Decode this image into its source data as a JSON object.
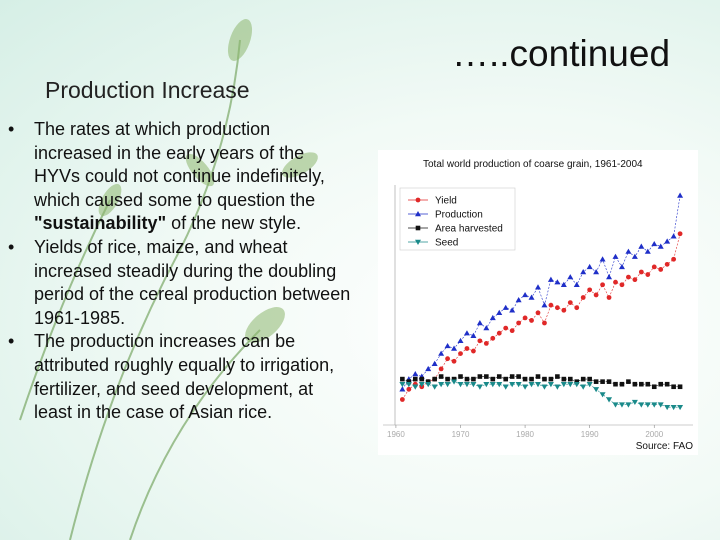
{
  "slide": {
    "heading": "Production Increase",
    "continued": "…..continued",
    "bullets": [
      {
        "before": "The rates at which production increased in the early years of the HYVs could not continue indefinitely, which caused some to question the ",
        "bold": "\"sustainability\"",
        "after": " of the new style."
      },
      {
        "before": "Yields of rice, maize, and wheat increased steadily during the doubling period of the cereal production between 1961-1985.",
        "bold": "",
        "after": ""
      },
      {
        "before": "The production increases can be attributed roughly equally to irrigation, fertilizer, and seed development, at least in the case of Asian rice.",
        "bold": "",
        "after": ""
      }
    ]
  },
  "chart_data": {
    "type": "line",
    "title": "Total world production of coarse grain, 1961-2004",
    "source": "Source:  FAO",
    "x": [
      1961,
      1962,
      1963,
      1964,
      1965,
      1966,
      1967,
      1968,
      1969,
      1970,
      1971,
      1972,
      1973,
      1974,
      1975,
      1976,
      1977,
      1978,
      1979,
      1980,
      1981,
      1982,
      1983,
      1984,
      1985,
      1986,
      1987,
      1988,
      1989,
      1990,
      1991,
      1992,
      1993,
      1994,
      1995,
      1996,
      1997,
      1998,
      1999,
      2000,
      2001,
      2002,
      2003,
      2004
    ],
    "xlim": [
      1958,
      2006
    ],
    "xticks": [
      1960,
      1970,
      1980,
      1990,
      2000
    ],
    "ylim": [
      0,
      100
    ],
    "series": [
      {
        "name": "Yield",
        "color": "#e02828",
        "marker": "circle",
        "values": [
          10,
          14,
          16,
          15,
          17,
          18,
          22,
          26,
          25,
          28,
          30,
          29,
          33,
          32,
          34,
          36,
          38,
          37,
          40,
          42,
          41,
          44,
          40,
          47,
          46,
          45,
          48,
          46,
          50,
          53,
          51,
          55,
          50,
          56,
          55,
          58,
          57,
          60,
          59,
          62,
          61,
          63,
          65,
          75
        ]
      },
      {
        "name": "Production",
        "color": "#1f2fc8",
        "marker": "triangle",
        "values": [
          14,
          18,
          20,
          19,
          22,
          24,
          28,
          31,
          30,
          33,
          36,
          35,
          40,
          38,
          42,
          44,
          46,
          45,
          49,
          51,
          50,
          54,
          47,
          57,
          56,
          55,
          58,
          55,
          60,
          62,
          60,
          65,
          58,
          66,
          62,
          68,
          66,
          70,
          68,
          71,
          70,
          72,
          74,
          90
        ]
      },
      {
        "name": "Area harvested",
        "color": "#111111",
        "marker": "square",
        "values": [
          18,
          17,
          18,
          18,
          17,
          18,
          19,
          18,
          18,
          19,
          18,
          18,
          19,
          19,
          18,
          19,
          18,
          19,
          19,
          18,
          18,
          19,
          18,
          18,
          19,
          18,
          18,
          17,
          18,
          18,
          17,
          17,
          17,
          16,
          16,
          17,
          16,
          16,
          16,
          15,
          16,
          16,
          15,
          15
        ]
      },
      {
        "name": "Seed",
        "color": "#1a8a8a",
        "marker": "down",
        "values": [
          16,
          16,
          15,
          16,
          16,
          15,
          16,
          16,
          17,
          16,
          16,
          16,
          15,
          16,
          16,
          16,
          15,
          16,
          16,
          15,
          16,
          16,
          15,
          16,
          15,
          16,
          16,
          16,
          15,
          16,
          14,
          12,
          10,
          8,
          8,
          8,
          9,
          8,
          8,
          8,
          8,
          7,
          7,
          7
        ]
      }
    ]
  }
}
